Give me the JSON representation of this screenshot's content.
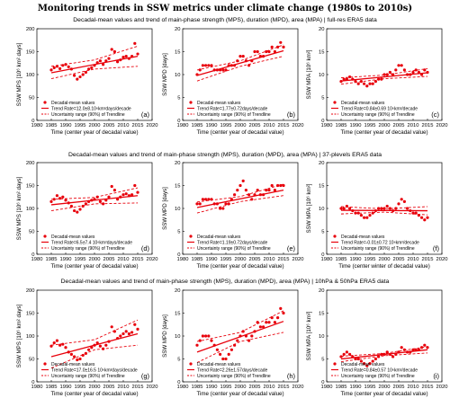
{
  "figure": {
    "title": "Monitoring trends in SSW metrics under climate change (1980s to 2010s)",
    "row_titles": [
      "Decadal-mean values and trend of main-phase strength (MPS), duration (MPD), area (MPA) | full-res ERA5 data",
      "Decadal-mean values and trend of main-phase strength (MPS), duration (MPD), area (MPA) | 37-plevels ERA5 data",
      "Decadal-mean values and trend of main-phase strength (MPS), duration (MPD), area (MPA) | 10hPa & 50hPa ERA5 data"
    ],
    "legend": {
      "points": "Decadal-mean values",
      "band": "Uncertainty range (90%) of Trendline"
    }
  },
  "chart_data": [
    {
      "type": "scatter",
      "panel": "(a)",
      "row": 0,
      "col": 0,
      "ylabel": "SSW MPS [10⁶ km² days]",
      "xlabel": "Time (center year of decadal value)",
      "xlim": [
        1980,
        2020
      ],
      "ylim": [
        0,
        200
      ],
      "yticks": [
        0,
        50,
        100,
        150,
        200
      ],
      "trend_label": "Trend Rate=12.0±8.10⁶km²days/decade",
      "trend": {
        "start": [
          1985,
          104
        ],
        "end": [
          2015,
          140
        ]
      },
      "band_lower": [
        [
          1985,
          91
        ],
        [
          2000,
          112
        ],
        [
          2015,
          118
        ]
      ],
      "band_upper": [
        [
          1985,
          118
        ],
        [
          2000,
          132
        ],
        [
          2015,
          162
        ]
      ],
      "x": [
        1985,
        1986,
        1987,
        1988,
        1989,
        1990,
        1991,
        1992,
        1993,
        1994,
        1995,
        1996,
        1997,
        1998,
        1999,
        2000,
        2001,
        2002,
        2003,
        2004,
        2005,
        2006,
        2007,
        2008,
        2009,
        2010,
        2011,
        2012,
        2013,
        2014,
        2015
      ],
      "y": [
        110,
        115,
        118,
        113,
        120,
        122,
        117,
        112,
        98,
        90,
        95,
        100,
        105,
        112,
        115,
        120,
        126,
        130,
        122,
        130,
        135,
        155,
        150,
        128,
        132,
        138,
        140,
        135,
        140,
        168,
        145
      ]
    },
    {
      "type": "scatter",
      "panel": "(b)",
      "row": 0,
      "col": 1,
      "ylabel": "SSW MPD [days]",
      "xlabel": "Time (center year of decadal value)",
      "xlim": [
        1980,
        2020
      ],
      "ylim": [
        0,
        20
      ],
      "yticks": [
        0,
        5,
        10,
        15,
        20
      ],
      "trend_label": "Trend Rate=1.77±0.72days/decade",
      "trend": {
        "start": [
          1985,
          9.8
        ],
        "end": [
          2015,
          15.2
        ]
      },
      "band_lower": [
        [
          1985,
          8.6
        ],
        [
          2000,
          11.8
        ],
        [
          2015,
          14
        ]
      ],
      "band_upper": [
        [
          1985,
          11
        ],
        [
          2000,
          13
        ],
        [
          2015,
          16.5
        ]
      ],
      "x": [
        1985,
        1986,
        1987,
        1988,
        1989,
        1990,
        1991,
        1992,
        1993,
        1994,
        1995,
        1996,
        1997,
        1998,
        1999,
        2000,
        2001,
        2002,
        2003,
        2004,
        2005,
        2006,
        2007,
        2008,
        2009,
        2010,
        2011,
        2012,
        2013,
        2014,
        2015
      ],
      "y": [
        10,
        11,
        12,
        12,
        12,
        12,
        11,
        11,
        11,
        11,
        11,
        12,
        12,
        12,
        13,
        14,
        14,
        13,
        12,
        13,
        15,
        15,
        14,
        14,
        15,
        15,
        16,
        15,
        16,
        17,
        16
      ]
    },
    {
      "type": "scatter",
      "panel": "(c)",
      "row": 0,
      "col": 2,
      "ylabel": "SSW MPA [10⁶ km²]",
      "xlabel": "Time (center year of decadal value)",
      "xlim": [
        1980,
        2020
      ],
      "ylim": [
        0,
        20
      ],
      "yticks": [
        0,
        5,
        10,
        15,
        20
      ],
      "trend_label": "Trend Rate=0.84±0.69 10⁶km²/decade",
      "trend": {
        "start": [
          1985,
          8.6
        ],
        "end": [
          2015,
          10.4
        ]
      },
      "band_lower": [
        [
          1985,
          7.9
        ],
        [
          2000,
          9.1
        ],
        [
          2015,
          9.6
        ]
      ],
      "band_upper": [
        [
          1985,
          9.3
        ],
        [
          2000,
          9.9
        ],
        [
          2015,
          11.3
        ]
      ],
      "x": [
        1985,
        1986,
        1987,
        1988,
        1989,
        1990,
        1991,
        1992,
        1993,
        1994,
        1995,
        1996,
        1997,
        1998,
        1999,
        2000,
        2001,
        2002,
        2003,
        2004,
        2005,
        2006,
        2007,
        2008,
        2009,
        2010,
        2011,
        2012,
        2013,
        2014,
        2015
      ],
      "y": [
        8.5,
        9,
        9,
        9.5,
        9,
        8.5,
        8,
        8.5,
        8,
        7.5,
        8,
        8,
        8.5,
        9,
        9,
        10,
        10,
        10.5,
        10,
        11,
        12,
        12,
        11,
        10,
        10,
        10.5,
        11,
        10.5,
        10,
        11,
        10.5
      ]
    },
    {
      "type": "scatter",
      "panel": "(d)",
      "row": 1,
      "col": 0,
      "ylabel": "SSW MPS [10⁶ km² days]",
      "xlabel": "Time (center year of decadal value)",
      "xlim": [
        1980,
        2020
      ],
      "ylim": [
        0,
        200
      ],
      "yticks": [
        0,
        50,
        100,
        150,
        200
      ],
      "trend_label": "Trend Rate=6.5±7.4 10⁶km²days/decade",
      "trend": {
        "start": [
          1985,
          108
        ],
        "end": [
          2015,
          128
        ]
      },
      "band_lower": [
        [
          1985,
          95
        ],
        [
          2000,
          110
        ],
        [
          2015,
          112
        ]
      ],
      "band_upper": [
        [
          1985,
          120
        ],
        [
          2000,
          124
        ],
        [
          2015,
          145
        ]
      ],
      "x": [
        1985,
        1986,
        1987,
        1988,
        1989,
        1990,
        1991,
        1992,
        1993,
        1994,
        1995,
        1996,
        1997,
        1998,
        1999,
        2000,
        2001,
        2002,
        2003,
        2004,
        2005,
        2006,
        2007,
        2008,
        2009,
        2010,
        2011,
        2012,
        2013,
        2014,
        2015
      ],
      "y": [
        115,
        120,
        128,
        122,
        125,
        118,
        112,
        105,
        95,
        92,
        98,
        105,
        110,
        115,
        118,
        120,
        125,
        115,
        110,
        118,
        125,
        148,
        140,
        120,
        125,
        130,
        132,
        128,
        130,
        150,
        135
      ]
    },
    {
      "type": "scatter",
      "panel": "(e)",
      "row": 1,
      "col": 1,
      "ylabel": "SSW MPD [days]",
      "xlabel": "Time (center year of decadal value)",
      "xlim": [
        1980,
        2020
      ],
      "ylim": [
        0,
        20
      ],
      "yticks": [
        0,
        5,
        10,
        15,
        20
      ],
      "trend_label": "Trend Rate=1.19±0.72days/decade",
      "trend": {
        "start": [
          1985,
          10.2
        ],
        "end": [
          2015,
          14
        ]
      },
      "band_lower": [
        [
          1985,
          9
        ],
        [
          2000,
          11.5
        ],
        [
          2015,
          12.8
        ]
      ],
      "band_upper": [
        [
          1985,
          11.4
        ],
        [
          2000,
          12.6
        ],
        [
          2015,
          15.3
        ]
      ],
      "x": [
        1985,
        1986,
        1987,
        1988,
        1989,
        1990,
        1991,
        1992,
        1993,
        1994,
        1995,
        1996,
        1997,
        1998,
        1999,
        2000,
        2001,
        2002,
        2003,
        2004,
        2005,
        2006,
        2007,
        2008,
        2009,
        2010,
        2011,
        2012,
        2013,
        2014,
        2015
      ],
      "y": [
        11,
        11,
        12,
        12,
        12,
        12,
        11,
        11,
        10,
        10,
        11,
        11,
        12,
        13,
        14,
        15,
        16,
        14,
        13,
        12,
        13,
        14,
        13,
        13,
        14,
        14,
        15,
        14,
        15,
        15,
        15
      ]
    },
    {
      "type": "scatter",
      "panel": "(f)",
      "row": 1,
      "col": 2,
      "ylabel": "SSW MPA [10⁶ km²]",
      "xlabel": "Time (center winter of decadal value)",
      "xlim": [
        1980,
        2020
      ],
      "ylim": [
        0,
        20
      ],
      "yticks": [
        0,
        5,
        10,
        15,
        20
      ],
      "trend_label": "Trend Rate=-0.01±0.72 10⁶km²/decade",
      "trend": {
        "start": [
          1985,
          9.6
        ],
        "end": [
          2015,
          9.5
        ]
      },
      "band_lower": [
        [
          1985,
          8.8
        ],
        [
          2000,
          9.2
        ],
        [
          2015,
          8.6
        ]
      ],
      "band_upper": [
        [
          1985,
          10.4
        ],
        [
          2000,
          9.9
        ],
        [
          2015,
          10.4
        ]
      ],
      "x": [
        1985,
        1986,
        1987,
        1988,
        1989,
        1990,
        1991,
        1992,
        1993,
        1994,
        1995,
        1996,
        1997,
        1998,
        1999,
        2000,
        2001,
        2002,
        2003,
        2004,
        2005,
        2006,
        2007,
        2008,
        2009,
        2010,
        2011,
        2012,
        2013,
        2014,
        2015
      ],
      "y": [
        10,
        10,
        10.5,
        10,
        9.5,
        9,
        9,
        8.5,
        8,
        8,
        8.5,
        9,
        9.5,
        10,
        10,
        10,
        10.5,
        10,
        9.5,
        10,
        11,
        12,
        11.5,
        10,
        9.5,
        9,
        9,
        8.5,
        8,
        7.5,
        8
      ]
    },
    {
      "type": "scatter",
      "panel": "(g)",
      "row": 2,
      "col": 0,
      "ylabel": "SSW MPS [10⁶ km² days]",
      "xlabel": "Time (center year of decadal value)",
      "xlim": [
        1980,
        2020
      ],
      "ylim": [
        0,
        200
      ],
      "yticks": [
        0,
        50,
        100,
        150,
        200
      ],
      "trend_label": "Trend Rate=17.0±16.5 10⁶km²days/decade",
      "trend": {
        "start": [
          1985,
          55
        ],
        "end": [
          2015,
          105
        ]
      },
      "band_lower": [
        [
          1985,
          30
        ],
        [
          2000,
          70
        ],
        [
          2015,
          80
        ]
      ],
      "band_upper": [
        [
          1985,
          80
        ],
        [
          2000,
          92
        ],
        [
          2015,
          135
        ]
      ],
      "x": [
        1985,
        1986,
        1987,
        1988,
        1989,
        1990,
        1991,
        1992,
        1993,
        1994,
        1995,
        1996,
        1997,
        1998,
        1999,
        2000,
        2001,
        2002,
        2003,
        2004,
        2005,
        2006,
        2007,
        2008,
        2009,
        2010,
        2011,
        2012,
        2013,
        2014,
        2015
      ],
      "y": [
        78,
        85,
        90,
        80,
        82,
        75,
        65,
        60,
        55,
        48,
        50,
        58,
        62,
        70,
        75,
        80,
        85,
        78,
        72,
        80,
        88,
        120,
        110,
        95,
        100,
        105,
        110,
        105,
        108,
        125,
        115
      ]
    },
    {
      "type": "scatter",
      "panel": "(h)",
      "row": 2,
      "col": 1,
      "ylabel": "SSW MPD [days]",
      "xlabel": "Time (center year of decadal value)",
      "xlim": [
        1980,
        2020
      ],
      "ylim": [
        0,
        20
      ],
      "yticks": [
        0,
        5,
        10,
        15,
        20
      ],
      "trend_label": "Trend Rate=2.26±1.57days/decade",
      "trend": {
        "start": [
          1985,
          6.5
        ],
        "end": [
          2015,
          13.2
        ]
      },
      "band_lower": [
        [
          1985,
          4.2
        ],
        [
          2000,
          8.8
        ],
        [
          2015,
          10.8
        ]
      ],
      "band_upper": [
        [
          1985,
          8.8
        ],
        [
          2000,
          10.8
        ],
        [
          2015,
          15.5
        ]
      ],
      "x": [
        1985,
        1986,
        1987,
        1988,
        1989,
        1990,
        1991,
        1992,
        1993,
        1994,
        1995,
        1996,
        1997,
        1998,
        1999,
        2000,
        2001,
        2002,
        2003,
        2004,
        2005,
        2006,
        2007,
        2008,
        2009,
        2010,
        2011,
        2012,
        2013,
        2014,
        2015
      ],
      "y": [
        8,
        9,
        10,
        10,
        10,
        9,
        8,
        7,
        6,
        5,
        5,
        6,
        7,
        8,
        9,
        10,
        11,
        10,
        9,
        10,
        11,
        13,
        12,
        12,
        13,
        13,
        14,
        13,
        14,
        16,
        15
      ]
    },
    {
      "type": "scatter",
      "panel": "(i)",
      "row": 2,
      "col": 2,
      "ylabel": "SSW MPA [10⁶ km²]",
      "xlabel": "Time (center year of decadal value)",
      "xlim": [
        1980,
        2020
      ],
      "ylim": [
        0,
        20
      ],
      "yticks": [
        0,
        5,
        10,
        15,
        20
      ],
      "trend_label": "Trend Rate=0.84±0.57 10⁶km²/decade",
      "trend": {
        "start": [
          1985,
          5
        ],
        "end": [
          2015,
          7
        ]
      },
      "band_lower": [
        [
          1985,
          4.4
        ],
        [
          2000,
          5.7
        ],
        [
          2015,
          6.3
        ]
      ],
      "band_upper": [
        [
          1985,
          5.6
        ],
        [
          2000,
          6.2
        ],
        [
          2015,
          7.7
        ]
      ],
      "x": [
        1985,
        1986,
        1987,
        1988,
        1989,
        1990,
        1991,
        1992,
        1993,
        1994,
        1995,
        1996,
        1997,
        1998,
        1999,
        2000,
        2001,
        2002,
        2003,
        2004,
        2005,
        2006,
        2007,
        2008,
        2009,
        2010,
        2011,
        2012,
        2013,
        2014,
        2015
      ],
      "y": [
        5.5,
        6,
        6.5,
        6,
        5.5,
        5,
        5,
        4.5,
        4,
        3.5,
        4,
        4.5,
        5,
        5.5,
        6,
        6,
        6.5,
        6,
        5.5,
        6,
        6.5,
        7.5,
        7,
        6.5,
        6.5,
        7,
        7,
        7,
        7.5,
        8,
        7.5
      ]
    }
  ]
}
